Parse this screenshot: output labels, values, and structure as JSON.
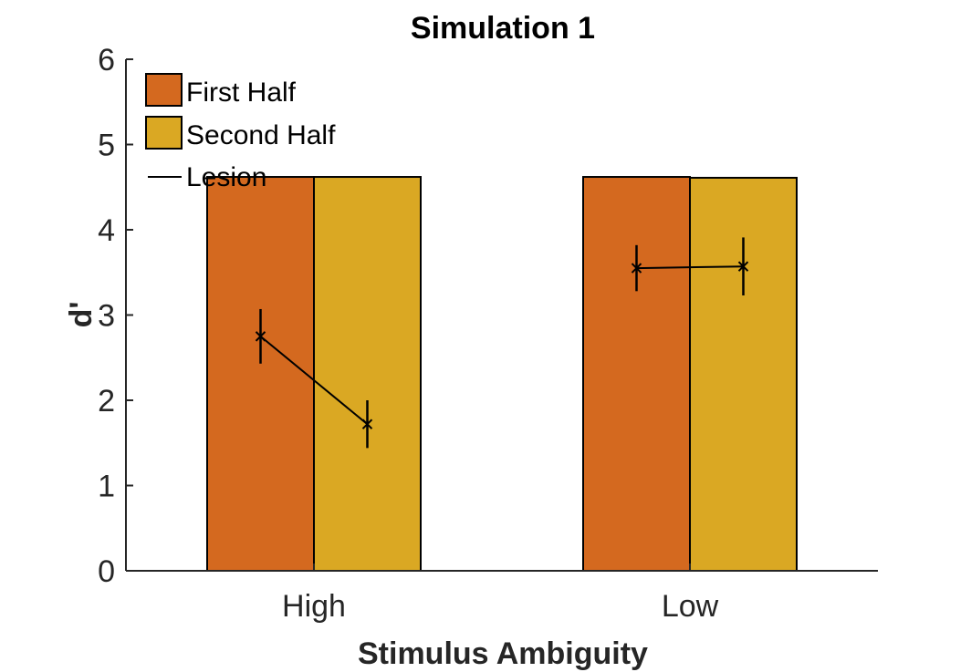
{
  "colors": {
    "first_half": "#D4691F",
    "second_half": "#DAA823",
    "lesion": "#000000",
    "axis": "#262626"
  },
  "chart_data": {
    "type": "bar",
    "title": "Simulation 1",
    "xlabel": "Stimulus Ambiguity",
    "ylabel": "d'",
    "categories": [
      "High",
      "Low"
    ],
    "ylim": [
      0,
      6
    ],
    "yticks": [
      "0",
      "1",
      "2",
      "3",
      "4",
      "5",
      "6"
    ],
    "grid": false,
    "legend_position": "top-left",
    "series": [
      {
        "name": "First Half",
        "values": [
          4.62,
          4.62
        ],
        "color": "#D4691F"
      },
      {
        "name": "Second Half",
        "values": [
          4.62,
          4.61
        ],
        "color": "#DAA823"
      }
    ],
    "overlay": {
      "name": "Lesion",
      "type": "line-errorbar",
      "marker": "x",
      "points": [
        {
          "category": "High",
          "series": "First Half",
          "value": 2.75,
          "err": 0.32
        },
        {
          "category": "High",
          "series": "Second Half",
          "value": 1.72,
          "err": 0.28
        },
        {
          "category": "Low",
          "series": "First Half",
          "value": 3.55,
          "err": 0.27
        },
        {
          "category": "Low",
          "series": "Second Half",
          "value": 3.57,
          "err": 0.34
        }
      ]
    }
  }
}
